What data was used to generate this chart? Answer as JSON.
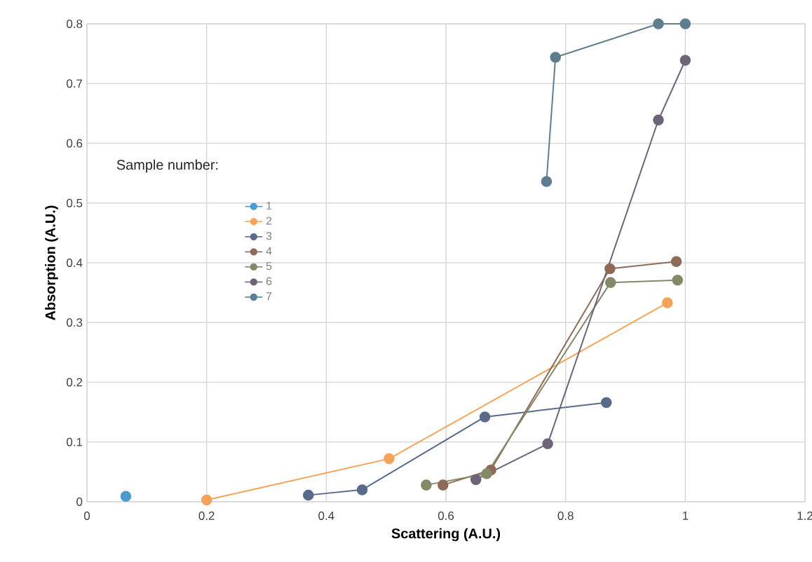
{
  "chart_data": {
    "type": "line",
    "xlabel": "Scattering (A.U.)",
    "ylabel": "Absorption (A.U.)",
    "legend_title": "Sample number:",
    "legend": "left",
    "grid": true,
    "marker": "circle",
    "line_style": "solid",
    "xlim": [
      0,
      1.2
    ],
    "xticks": [
      0,
      0.2,
      0.4,
      0.6,
      0.8,
      1,
      1.2
    ],
    "ylim": [
      0,
      0.8
    ],
    "yticks": [
      0,
      0.1,
      0.2,
      0.3,
      0.4,
      0.5,
      0.6,
      0.7,
      0.8
    ],
    "series": [
      {
        "name": "1",
        "color": "#4a9ccc",
        "x": [
          0.065
        ],
        "values": [
          0.009
        ]
      },
      {
        "name": "2",
        "color": "#f4a45a",
        "x": [
          0.2,
          0.505,
          0.97
        ],
        "values": [
          0.003,
          0.072,
          0.333
        ]
      },
      {
        "name": "3",
        "color": "#5a6a8a",
        "x": [
          0.37,
          0.46,
          0.665,
          0.868
        ],
        "values": [
          0.011,
          0.02,
          0.142,
          0.166
        ]
      },
      {
        "name": "4",
        "color": "#8e6a58",
        "x": [
          0.595,
          0.675,
          0.874,
          0.985
        ],
        "values": [
          0.028,
          0.053,
          0.39,
          0.402
        ]
      },
      {
        "name": "5",
        "color": "#85896a",
        "x": [
          0.567,
          0.668,
          0.875,
          0.987
        ],
        "values": [
          0.028,
          0.047,
          0.367,
          0.371
        ]
      },
      {
        "name": "6",
        "color": "#6e6478",
        "x": [
          0.65,
          0.77,
          0.955,
          1.0
        ],
        "values": [
          0.037,
          0.097,
          0.639,
          0.739
        ]
      },
      {
        "name": "7",
        "color": "#5e7d90",
        "x": [
          0.768,
          0.783,
          0.955,
          1.0
        ],
        "values": [
          0.536,
          0.744,
          0.8,
          0.8
        ]
      }
    ]
  }
}
